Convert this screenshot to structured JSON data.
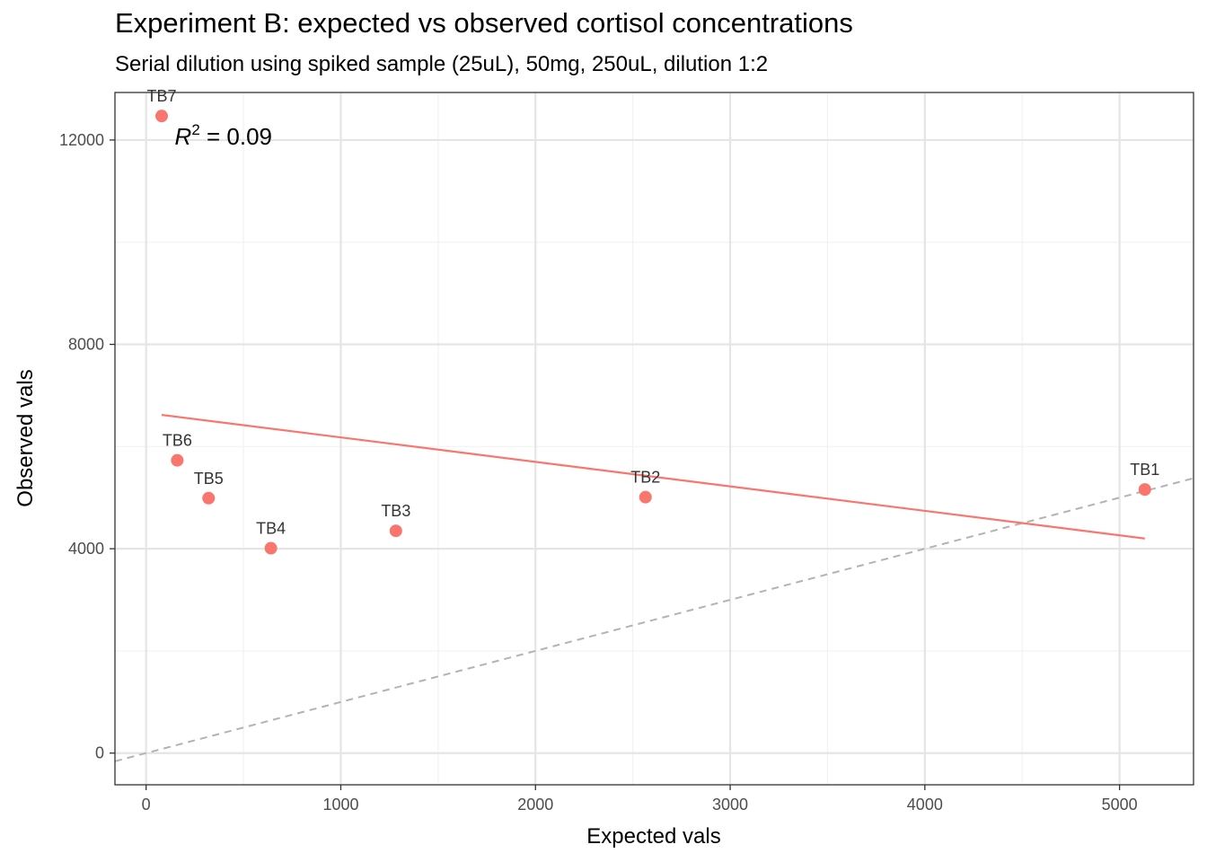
{
  "title": "Experiment B: expected vs observed cortisol concentrations",
  "subtitle": "Serial dilution using spiked sample (25uL), 50mg, 250uL, dilution 1:2",
  "colors": {
    "points": "#F8766D",
    "fit_line": "#F8766D",
    "identity_line": "#B3B3B3",
    "grid_major": "#E5E5E5",
    "grid_minor": "#F2F2F2",
    "panel_border": "#333333"
  },
  "chart_data": {
    "type": "scatter",
    "xlabel": "Expected vals",
    "ylabel": "Observed vals",
    "xlim": [
      -160,
      5380
    ],
    "ylim": [
      -620,
      12930
    ],
    "x_ticks": [
      0,
      1000,
      2000,
      3000,
      4000,
      5000
    ],
    "x_tick_labels": [
      "0",
      "1000",
      "2000",
      "3000",
      "4000",
      "5000"
    ],
    "x_minor_ticks": [
      500,
      1500,
      2500,
      3500,
      4500
    ],
    "y_ticks": [
      0,
      4000,
      8000,
      12000
    ],
    "y_tick_labels": [
      "0",
      "4000",
      "8000",
      "12000"
    ],
    "y_minor_ticks": [
      2000,
      6000,
      10000
    ],
    "grid": true,
    "legend": "none",
    "points": [
      {
        "label": "TB1",
        "x": 5130,
        "y": 5160
      },
      {
        "label": "TB2",
        "x": 2565,
        "y": 5010
      },
      {
        "label": "TB3",
        "x": 1283,
        "y": 4350
      },
      {
        "label": "TB4",
        "x": 641,
        "y": 4010
      },
      {
        "label": "TB5",
        "x": 321,
        "y": 4990
      },
      {
        "label": "TB6",
        "x": 160,
        "y": 5730
      },
      {
        "label": "TB7",
        "x": 80,
        "y": 12470
      }
    ],
    "fit_line": {
      "x": [
        80,
        5130
      ],
      "y": [
        6620,
        4200
      ]
    },
    "identity_line": {
      "x": [
        -160,
        5380
      ],
      "y": [
        -160,
        5380
      ],
      "style": "dashed"
    },
    "annotation": {
      "prefix": "R",
      "superscript": "2",
      "suffix": " = 0.09",
      "x": 110,
      "y": 12070
    }
  }
}
